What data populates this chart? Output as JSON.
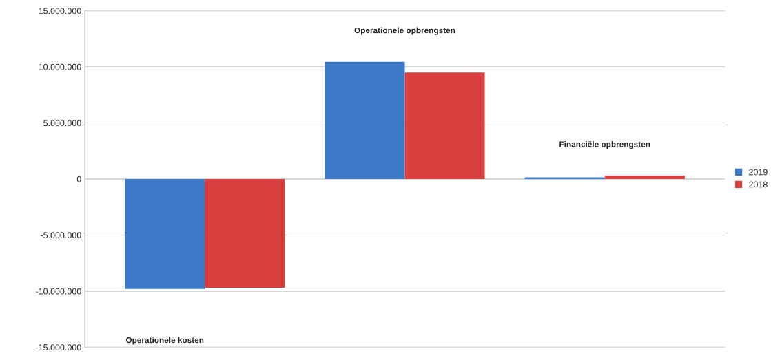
{
  "chart_data": {
    "type": "bar",
    "categories": [
      "Operationele kosten",
      "Operationele opbrengsten",
      "Financiële opbrengsten"
    ],
    "series": [
      {
        "name": "2019",
        "color": "#3c78c8",
        "values": [
          -9800000,
          10450000,
          150000
        ]
      },
      {
        "name": "2018",
        "color": "#d84040",
        "values": [
          -9700000,
          9500000,
          300000
        ]
      }
    ],
    "ylim": [
      -15000000,
      15000000
    ],
    "yticks": [
      {
        "value": -15000000,
        "label": "-15.000.000"
      },
      {
        "value": -10000000,
        "label": "-10.000.000"
      },
      {
        "value": -5000000,
        "label": "-5.000.000"
      },
      0,
      {
        "value": 5000000,
        "label": "5.000.000"
      },
      {
        "value": 10000000,
        "label": "10.000.000"
      },
      {
        "value": 15000000,
        "label": "15.000.000"
      }
    ],
    "grid": "y",
    "legend": "right",
    "tick_labels": "y"
  }
}
